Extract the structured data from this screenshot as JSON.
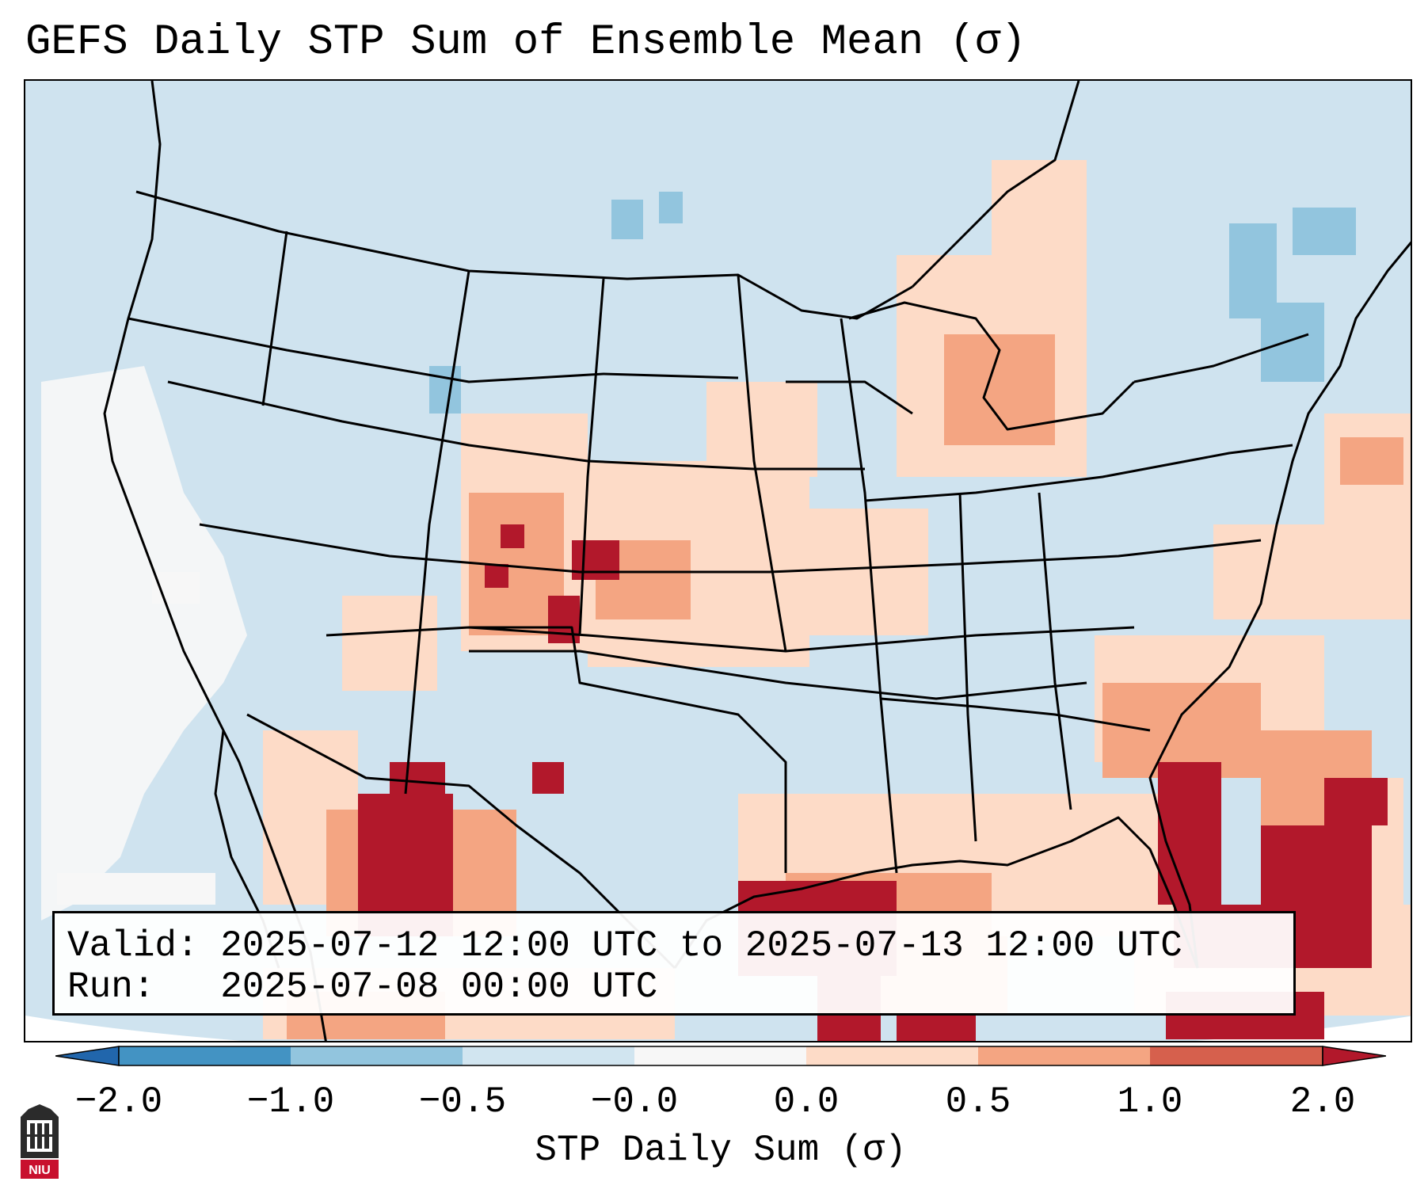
{
  "title": "GEFS Daily STP Sum of Ensemble Mean (σ)",
  "info": {
    "valid_line": "Valid: 2025-07-12 12:00 UTC to 2025-07-13 12:00 UTC",
    "run_line": "Run:   2025-07-08 00:00 UTC"
  },
  "colorbar": {
    "label": "STP Daily Sum (σ)",
    "ticks": [
      "−2.0",
      "−1.0",
      "−0.5",
      "−0.0",
      "0.0",
      "0.5",
      "1.0",
      "2.0"
    ],
    "colors": [
      "#4393c3",
      "#92c5de",
      "#d1e5f0",
      "#f7f7f7",
      "#fddbc7",
      "#f4a582",
      "#d6604d",
      "#b2182b"
    ],
    "under_color": "#2166ac",
    "over_color": "#b2182b"
  },
  "logo": {
    "text": "NIU"
  },
  "regions": [
    {
      "name": "pacific-clear",
      "value": -0.0
    },
    {
      "name": "great-plains",
      "value": 1.0
    },
    {
      "name": "mexico-sierra",
      "value": 2.0
    },
    {
      "name": "gulf-coast",
      "value": 2.0
    },
    {
      "name": "florida-atlantic",
      "value": 2.0
    },
    {
      "name": "great-lakes",
      "value": 0.5
    },
    {
      "name": "new-england",
      "value": -0.5
    }
  ]
}
